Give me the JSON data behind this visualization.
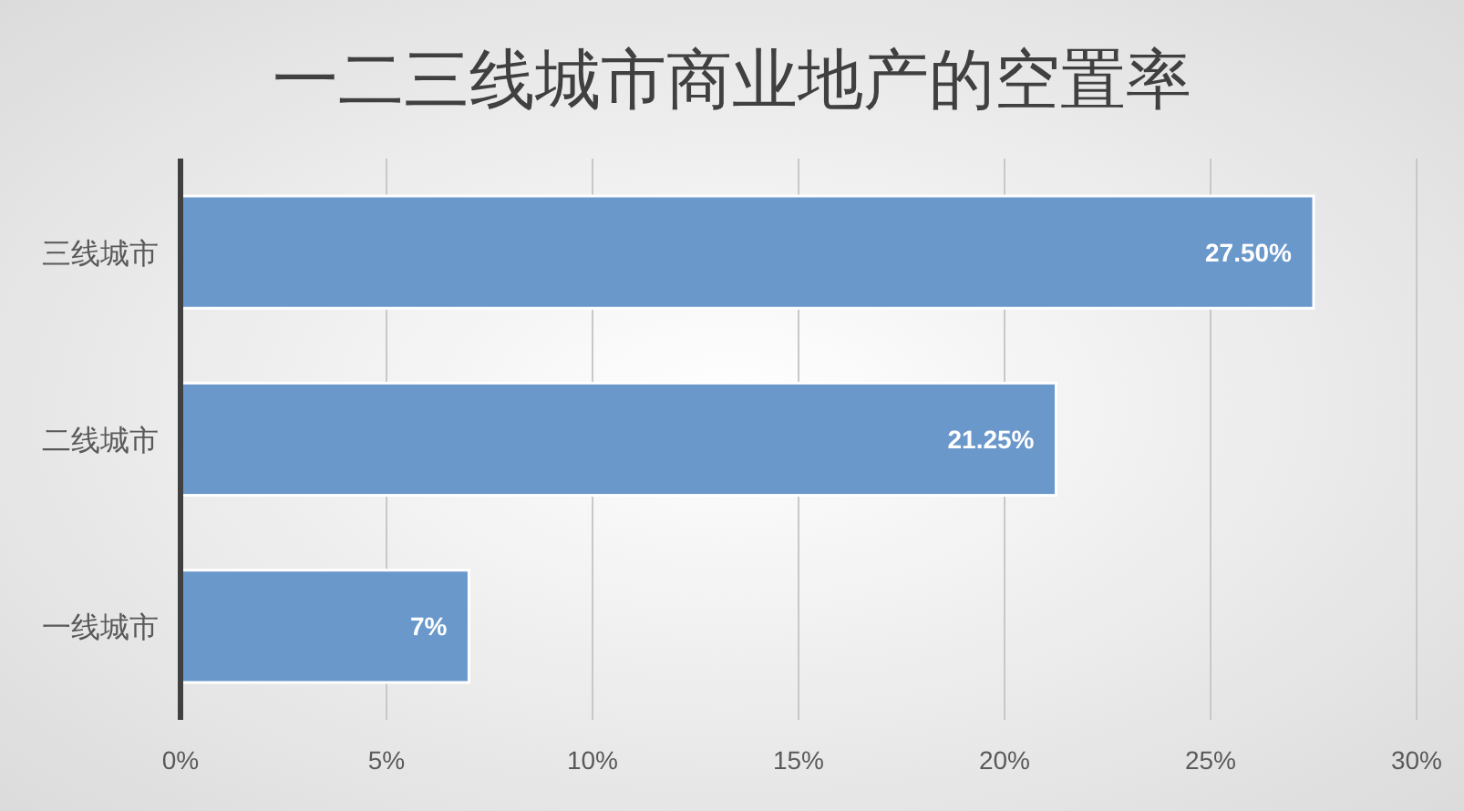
{
  "chart_data": {
    "type": "bar",
    "orientation": "horizontal",
    "title": "一二三线城市商业地产的空置率",
    "categories": [
      "三线城市",
      "二线城市",
      "一线城市"
    ],
    "values": [
      27.5,
      21.25,
      7
    ],
    "value_labels": [
      "27.50%",
      "21.25%",
      "7%"
    ],
    "color": "#6a98cb",
    "xlim": [
      0,
      30
    ],
    "xticks": [
      {
        "value": 0,
        "label": "0%"
      },
      {
        "value": 5,
        "label": "5%"
      },
      {
        "value": 10,
        "label": "10%"
      },
      {
        "value": 15,
        "label": "15%"
      },
      {
        "value": 20,
        "label": "20%"
      },
      {
        "value": 25,
        "label": "25%"
      },
      {
        "value": 30,
        "label": "30%"
      }
    ],
    "grid": "x"
  }
}
